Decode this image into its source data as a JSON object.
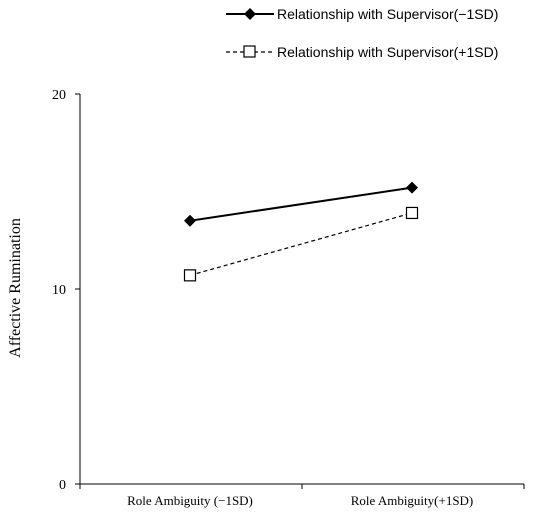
{
  "chart_data": {
    "type": "line",
    "title": "",
    "ylabel": "Affective Rumination",
    "xlabel": "",
    "categories": [
      "Role Ambiguity (−1SD)",
      "Role Ambiguity(+1SD)"
    ],
    "ylim": [
      0,
      20
    ],
    "yticks": [
      "0",
      "10",
      "20"
    ],
    "legend_position": "top-right",
    "series": [
      {
        "name": "Relationship with Supervisor(−1SD)",
        "values": [
          13.5,
          15.2
        ],
        "line_style": "solid",
        "marker": "filled-diamond",
        "color": "#000000"
      },
      {
        "name": "Relationship with Supervisor(+1SD)",
        "values": [
          10.7,
          13.9
        ],
        "line_style": "dashed",
        "marker": "open-square",
        "color": "#000000"
      }
    ]
  }
}
